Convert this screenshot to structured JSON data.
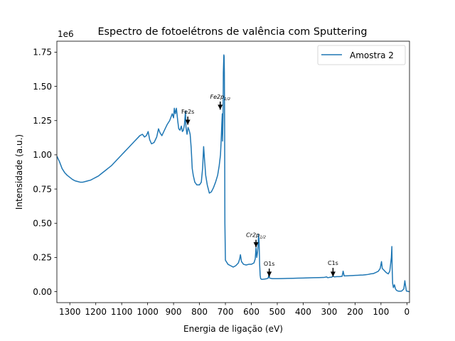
{
  "chart_data": {
    "type": "line",
    "title": "Espectro de fotoelétrons de valência com Sputtering",
    "xlabel": "Energia de ligação (eV)",
    "ylabel": "Intensidade (a.u.)",
    "y_offset_label": "1e6",
    "x_reversed": true,
    "xlim": [
      1350,
      -10
    ],
    "ylim": [
      -80000,
      1830000
    ],
    "x_ticks": [
      1300,
      1200,
      1100,
      1000,
      900,
      800,
      700,
      600,
      500,
      400,
      300,
      200,
      100,
      0
    ],
    "y_ticks": [
      0,
      250000,
      500000,
      750000,
      1000000,
      1250000,
      1500000,
      1750000
    ],
    "y_tick_labels": [
      "0.00",
      "0.25",
      "0.50",
      "0.75",
      "1.00",
      "1.25",
      "1.50",
      "1.75"
    ],
    "grid": false,
    "legend_position": "upper right",
    "series": [
      {
        "name": "Amostra 2",
        "color": "#1f77b4",
        "points": [
          [
            1350,
            990000
          ],
          [
            1340,
            950000
          ],
          [
            1330,
            900000
          ],
          [
            1320,
            870000
          ],
          [
            1310,
            850000
          ],
          [
            1300,
            835000
          ],
          [
            1290,
            820000
          ],
          [
            1280,
            810000
          ],
          [
            1270,
            805000
          ],
          [
            1260,
            800000
          ],
          [
            1250,
            800000
          ],
          [
            1240,
            805000
          ],
          [
            1230,
            810000
          ],
          [
            1220,
            815000
          ],
          [
            1210,
            825000
          ],
          [
            1200,
            835000
          ],
          [
            1190,
            845000
          ],
          [
            1180,
            860000
          ],
          [
            1170,
            875000
          ],
          [
            1160,
            890000
          ],
          [
            1150,
            905000
          ],
          [
            1140,
            920000
          ],
          [
            1130,
            940000
          ],
          [
            1120,
            960000
          ],
          [
            1110,
            980000
          ],
          [
            1100,
            1000000
          ],
          [
            1090,
            1020000
          ],
          [
            1080,
            1040000
          ],
          [
            1070,
            1060000
          ],
          [
            1060,
            1080000
          ],
          [
            1050,
            1100000
          ],
          [
            1040,
            1120000
          ],
          [
            1030,
            1140000
          ],
          [
            1020,
            1150000
          ],
          [
            1012,
            1130000
          ],
          [
            1005,
            1140000
          ],
          [
            998,
            1170000
          ],
          [
            992,
            1110000
          ],
          [
            985,
            1080000
          ],
          [
            975,
            1090000
          ],
          [
            965,
            1130000
          ],
          [
            958,
            1190000
          ],
          [
            952,
            1160000
          ],
          [
            945,
            1140000
          ],
          [
            935,
            1180000
          ],
          [
            925,
            1220000
          ],
          [
            915,
            1250000
          ],
          [
            905,
            1300000
          ],
          [
            900,
            1270000
          ],
          [
            897,
            1340000
          ],
          [
            893,
            1300000
          ],
          [
            889,
            1340000
          ],
          [
            884,
            1250000
          ],
          [
            880,
            1190000
          ],
          [
            875,
            1180000
          ],
          [
            870,
            1210000
          ],
          [
            866,
            1170000
          ],
          [
            862,
            1180000
          ],
          [
            858,
            1220000
          ],
          [
            854,
            1320000
          ],
          [
            852,
            1200000
          ],
          [
            848,
            1150000
          ],
          [
            844,
            1200000
          ],
          [
            840,
            1180000
          ],
          [
            836,
            1150000
          ],
          [
            832,
            1050000
          ],
          [
            828,
            900000
          ],
          [
            824,
            850000
          ],
          [
            818,
            800000
          ],
          [
            810,
            780000
          ],
          [
            800,
            780000
          ],
          [
            793,
            800000
          ],
          [
            788,
            900000
          ],
          [
            784,
            1060000
          ],
          [
            780,
            950000
          ],
          [
            776,
            850000
          ],
          [
            770,
            780000
          ],
          [
            762,
            720000
          ],
          [
            754,
            730000
          ],
          [
            746,
            760000
          ],
          [
            738,
            800000
          ],
          [
            730,
            850000
          ],
          [
            724,
            920000
          ],
          [
            719,
            1000000
          ],
          [
            716,
            1120000
          ],
          [
            714,
            1220000
          ],
          [
            712,
            1300000
          ],
          [
            711,
            1100000
          ],
          [
            709,
            1300000
          ],
          [
            708,
            1600000
          ],
          [
            706,
            1730000
          ],
          [
            705,
            1720000
          ],
          [
            704,
            1600000
          ],
          [
            703,
            1200000
          ],
          [
            702,
            500000
          ],
          [
            700,
            230000
          ],
          [
            690,
            200000
          ],
          [
            680,
            190000
          ],
          [
            670,
            180000
          ],
          [
            660,
            190000
          ],
          [
            650,
            210000
          ],
          [
            645,
            240000
          ],
          [
            642,
            270000
          ],
          [
            638,
            220000
          ],
          [
            630,
            200000
          ],
          [
            620,
            195000
          ],
          [
            610,
            200000
          ],
          [
            600,
            200000
          ],
          [
            590,
            210000
          ],
          [
            585,
            240000
          ],
          [
            582,
            320000
          ],
          [
            579,
            250000
          ],
          [
            576,
            290000
          ],
          [
            574,
            340000
          ],
          [
            572,
            420000
          ],
          [
            570,
            360000
          ],
          [
            568,
            200000
          ],
          [
            566,
            120000
          ],
          [
            564,
            95000
          ],
          [
            560,
            90000
          ],
          [
            550,
            92000
          ],
          [
            540,
            95000
          ],
          [
            535,
            100000
          ],
          [
            532,
            130000
          ],
          [
            530,
            100000
          ],
          [
            520,
            95000
          ],
          [
            500,
            95000
          ],
          [
            480,
            96000
          ],
          [
            460,
            97000
          ],
          [
            440,
            98000
          ],
          [
            420,
            99000
          ],
          [
            400,
            100000
          ],
          [
            380,
            101000
          ],
          [
            360,
            102000
          ],
          [
            340,
            103000
          ],
          [
            320,
            104000
          ],
          [
            310,
            108000
          ],
          [
            305,
            102000
          ],
          [
            300,
            104000
          ],
          [
            290,
            106000
          ],
          [
            285,
            115000
          ],
          [
            280,
            108000
          ],
          [
            270,
            110000
          ],
          [
            260,
            110000
          ],
          [
            250,
            112000
          ],
          [
            246,
            150000
          ],
          [
            242,
            115000
          ],
          [
            230,
            116000
          ],
          [
            220,
            117000
          ],
          [
            210,
            118000
          ],
          [
            200,
            119000
          ],
          [
            190,
            120000
          ],
          [
            180,
            121000
          ],
          [
            170,
            122000
          ],
          [
            160,
            124000
          ],
          [
            150,
            126000
          ],
          [
            140,
            130000
          ],
          [
            130,
            132000
          ],
          [
            120,
            140000
          ],
          [
            110,
            150000
          ],
          [
            103,
            170000
          ],
          [
            98,
            220000
          ],
          [
            95,
            170000
          ],
          [
            90,
            160000
          ],
          [
            85,
            150000
          ],
          [
            80,
            140000
          ],
          [
            72,
            130000
          ],
          [
            66,
            150000
          ],
          [
            63,
            200000
          ],
          [
            60,
            250000
          ],
          [
            58,
            330000
          ],
          [
            57,
            180000
          ],
          [
            55,
            60000
          ],
          [
            52,
            30000
          ],
          [
            48,
            50000
          ],
          [
            44,
            20000
          ],
          [
            40,
            10000
          ],
          [
            35,
            5000
          ],
          [
            28,
            3000
          ],
          [
            20,
            5000
          ],
          [
            12,
            20000
          ],
          [
            8,
            80000
          ],
          [
            5,
            40000
          ],
          [
            2,
            5000
          ],
          [
            -10,
            0
          ]
        ]
      }
    ],
    "annotations": [
      {
        "text": "Fe2s",
        "x": 845,
        "y": 1220000,
        "text_x": 845,
        "text_y": 1300000
      },
      {
        "text": "Fe2p",
        "subscript": "1/2",
        "italic": true,
        "x": 720,
        "y": 1330000,
        "text_x": 720,
        "text_y": 1410000
      },
      {
        "text": "Cr2p",
        "subscript": "1/2",
        "italic": true,
        "x": 582,
        "y": 325000,
        "text_x": 582,
        "text_y": 400000
      },
      {
        "text": "O1s",
        "x": 531,
        "y": 110000,
        "text_x": 531,
        "text_y": 190000
      },
      {
        "text": "C1s",
        "x": 285,
        "y": 110000,
        "text_x": 285,
        "text_y": 195000
      }
    ]
  }
}
